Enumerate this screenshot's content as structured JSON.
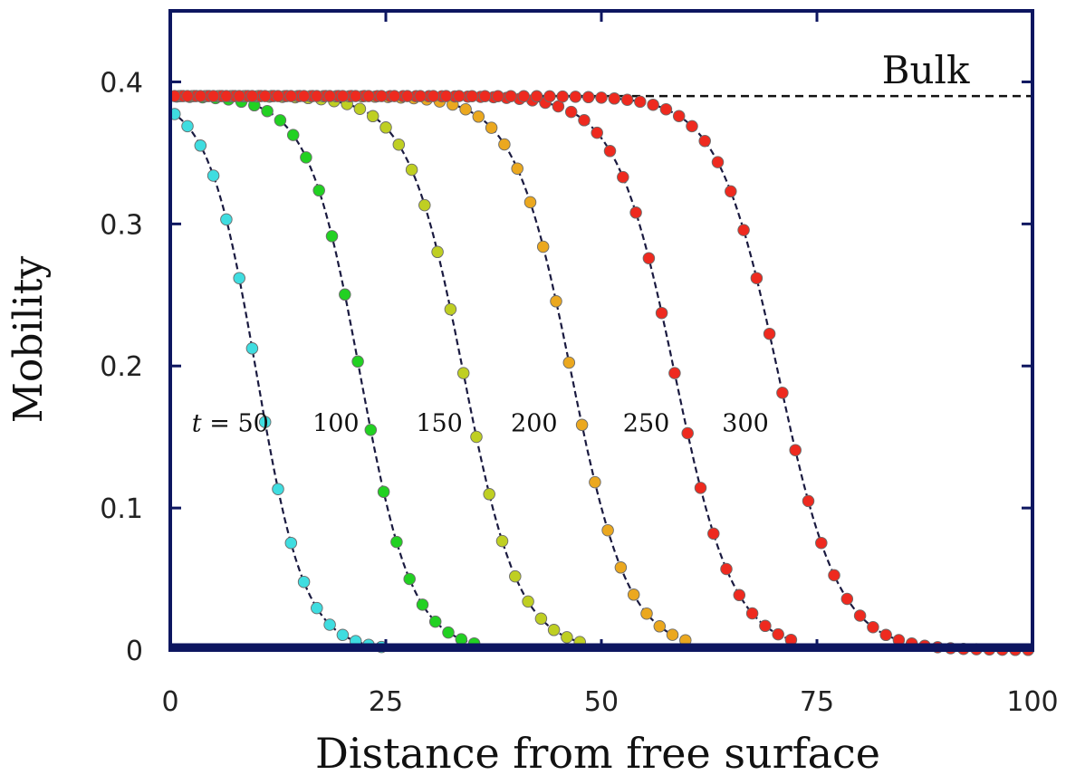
{
  "chart_data": {
    "type": "scatter",
    "xlabel": "Distance from free surface",
    "ylabel": "Mobility",
    "xlim": [
      0,
      100
    ],
    "ylim": [
      0,
      0.45
    ],
    "x_ticks": [
      "0",
      "25",
      "50",
      "75",
      "100"
    ],
    "y_ticks": [
      "0",
      "0.1",
      "0.2",
      "0.3",
      "0.4"
    ],
    "bulk": {
      "label": "Bulk",
      "value": 0.39
    },
    "curve_prefix": "t = ",
    "point_step": 1.5,
    "series": [
      {
        "name": "50",
        "label": "t = 50",
        "mid": 10,
        "width": 2.8,
        "color": "#3fdde0",
        "x_max": 25
      },
      {
        "name": "100",
        "label": "100",
        "mid": 22,
        "width": 3.0,
        "color": "#22d122",
        "x_max": 36
      },
      {
        "name": "150",
        "label": "150",
        "mid": 34,
        "width": 3.2,
        "color": "#bfcf22",
        "x_max": 48
      },
      {
        "name": "200",
        "label": "200",
        "mid": 46.5,
        "width": 3.3,
        "color": "#eba81f",
        "x_max": 60
      },
      {
        "name": "250",
        "label": "250",
        "mid": 58.5,
        "width": 3.4,
        "color": "#ee2a1f",
        "x_max": 72
      },
      {
        "name": "300",
        "label": "300",
        "mid": 70.5,
        "width": 3.5,
        "color": "#ee2a1f",
        "x_max": 100
      }
    ],
    "curve_labels": [
      {
        "text": "t = 50",
        "x": 2.5,
        "y": 0.154
      },
      {
        "text": "100",
        "x": 16.5,
        "y": 0.154
      },
      {
        "text": "150",
        "x": 28.5,
        "y": 0.154
      },
      {
        "text": "200",
        "x": 39.5,
        "y": 0.154
      },
      {
        "text": "250",
        "x": 52.5,
        "y": 0.154
      },
      {
        "text": "300",
        "x": 64.0,
        "y": 0.154
      }
    ],
    "legend": "none",
    "grid": false
  }
}
